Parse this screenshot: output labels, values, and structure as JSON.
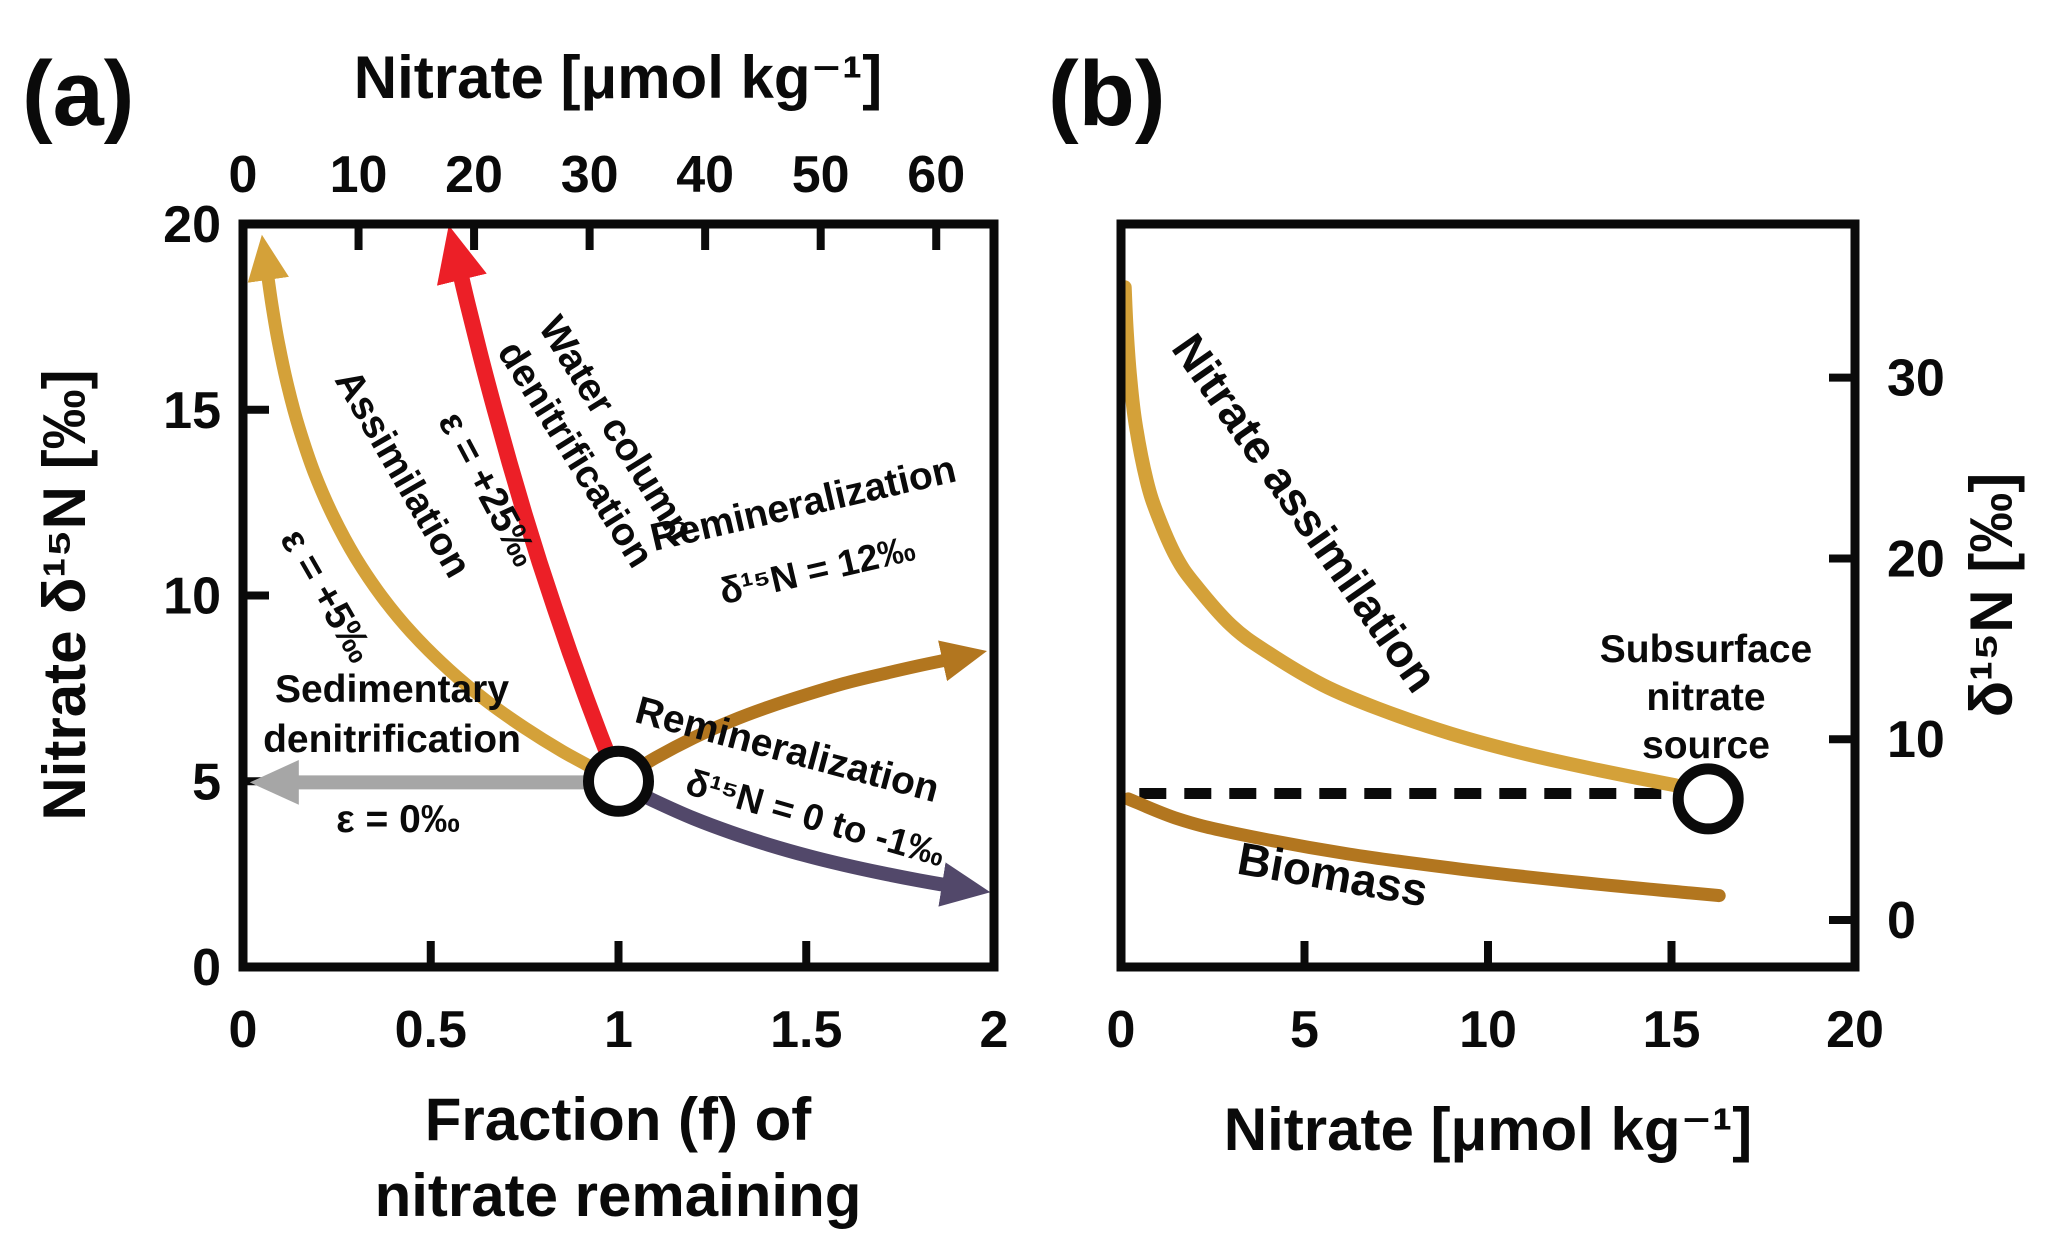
{
  "figure": {
    "background": "#ffffff",
    "text_color": "#0a0a0a"
  },
  "chart_data": [
    {
      "id": "panel-a",
      "type": "line",
      "panel_label": "(a)",
      "xlim": [
        0,
        2
      ],
      "ylim": [
        0,
        20
      ],
      "axes": {
        "top": {
          "label": "Nitrate [μmol kg⁻¹]",
          "ticks": [
            0,
            10,
            20,
            30,
            40,
            50,
            60
          ],
          "range": [
            0,
            65
          ]
        },
        "left": {
          "label": "Nitrate δ¹⁵N [‰]",
          "ticks": [
            0,
            5,
            10,
            15,
            20
          ]
        },
        "bottom": {
          "label_lines": [
            "Fraction (f) of",
            "nitrate remaining"
          ],
          "ticks": [
            0,
            0.5,
            1,
            1.5,
            2
          ]
        }
      },
      "series": [
        {
          "name": "sedimentary-denitrification",
          "color": "#a6a6a6",
          "width": 14,
          "arrow": "end",
          "points": [
            [
              0.93,
              4.97
            ],
            [
              0.13,
              4.97
            ]
          ]
        },
        {
          "name": "assimilation",
          "color": "#d4a139",
          "width": 13,
          "arrow": "end",
          "points": [
            [
              0.95,
              5.26
            ],
            [
              0.85,
              5.81
            ],
            [
              0.75,
              6.44
            ],
            [
              0.65,
              7.15
            ],
            [
              0.55,
              7.99
            ],
            [
              0.45,
              8.99
            ],
            [
              0.37,
              9.97
            ],
            [
              0.3,
              11.02
            ],
            [
              0.24,
              12.14
            ],
            [
              0.19,
              13.3
            ],
            [
              0.15,
              14.49
            ],
            [
              0.12,
              15.6
            ],
            [
              0.095,
              16.77
            ],
            [
              0.078,
              17.76
            ],
            [
              0.065,
              18.67
            ]
          ]
        },
        {
          "name": "water-column-denitrification",
          "color": "#ec1f27",
          "width": 16,
          "arrow": "end",
          "points": [
            [
              0.985,
              5.38
            ],
            [
              0.95,
              6.28
            ],
            [
              0.91,
              7.36
            ],
            [
              0.87,
              8.48
            ],
            [
              0.83,
              9.66
            ],
            [
              0.79,
              10.89
            ],
            [
              0.75,
              12.19
            ],
            [
              0.71,
              13.57
            ],
            [
              0.67,
              15.02
            ],
            [
              0.63,
              16.55
            ],
            [
              0.6,
              17.77
            ],
            [
              0.578,
              18.71
            ]
          ]
        },
        {
          "name": "remineralization-high",
          "color": "#b2761f",
          "width": 13,
          "arrow": "end",
          "points": [
            [
              1.03,
              5.2
            ],
            [
              1.1,
              5.64
            ],
            [
              1.2,
              6.17
            ],
            [
              1.3,
              6.62
            ],
            [
              1.4,
              7.0
            ],
            [
              1.5,
              7.33
            ],
            [
              1.6,
              7.63
            ],
            [
              1.7,
              7.88
            ],
            [
              1.8,
              8.11
            ],
            [
              1.88,
              8.28
            ]
          ]
        },
        {
          "name": "remineralization-low",
          "color": "#52486a",
          "width": 14,
          "arrow": "end",
          "points": [
            [
              1.03,
              4.81
            ],
            [
              1.1,
              4.45
            ],
            [
              1.2,
              4.0
            ],
            [
              1.3,
              3.62
            ],
            [
              1.4,
              3.29
            ],
            [
              1.5,
              3.0
            ],
            [
              1.6,
              2.75
            ],
            [
              1.7,
              2.53
            ],
            [
              1.8,
              2.33
            ],
            [
              1.88,
              2.19
            ]
          ]
        }
      ],
      "open_markers": [
        {
          "x": 1,
          "y": 5,
          "name": "initial-nitrate-marker"
        }
      ],
      "annotations": {
        "sedimentary": {
          "line1": "Sedimentary",
          "line2": "denitrification",
          "epsilon": "ε = 0‰"
        },
        "assimilation": {
          "label": "Assimilation",
          "epsilon": "ε = +5‰"
        },
        "water_column": {
          "line1": "Water column",
          "line2": "denitrification",
          "epsilon": "ε = +25‰"
        },
        "remin_high": {
          "label": "Remineralization",
          "value": "δ¹⁵N = 12‰"
        },
        "remin_low": {
          "label": "Remineralization",
          "value": "δ¹⁵N = 0 to -1‰"
        }
      }
    },
    {
      "id": "panel-b",
      "type": "line",
      "panel_label": "(b)",
      "xlim": [
        0,
        20
      ],
      "ylim": [
        -2.6,
        38.5
      ],
      "axes": {
        "bottom": {
          "label": "Nitrate [μmol kg⁻¹]",
          "ticks": [
            0,
            5,
            10,
            15,
            20
          ]
        },
        "right": {
          "label": "δ¹⁵N [‰]",
          "ticks": [
            0,
            10,
            20,
            30
          ]
        }
      },
      "series": [
        {
          "name": "subsurface-source-line",
          "color": "#0a0a0a",
          "width": 11,
          "dashed": true,
          "points": [
            [
              0.5,
              7.0
            ],
            [
              15.3,
              7.0
            ]
          ]
        },
        {
          "name": "nitrate-assimilation",
          "color": "#d4a139",
          "width": 14,
          "points": [
            [
              0.1,
              35.0
            ],
            [
              0.15,
              32.8
            ],
            [
              0.25,
              30.0
            ],
            [
              0.4,
              27.4
            ],
            [
              0.7,
              24.3
            ],
            [
              1.0,
              22.4
            ],
            [
              1.5,
              20.1
            ],
            [
              2.0,
              18.6
            ],
            [
              3.0,
              16.3
            ],
            [
              4.0,
              14.8
            ],
            [
              5.5,
              13.0
            ],
            [
              7.0,
              11.7
            ],
            [
              9.0,
              10.3
            ],
            [
              11.0,
              9.2
            ],
            [
              13.0,
              8.3
            ],
            [
              15.1,
              7.45
            ]
          ]
        },
        {
          "name": "biomass",
          "color": "#b2761f",
          "width": 13,
          "points": [
            [
              0.2,
              6.7
            ],
            [
              1.55,
              5.6
            ],
            [
              3.1,
              4.8
            ],
            [
              6.2,
              3.65
            ],
            [
              9.3,
              2.8
            ],
            [
              12.4,
              2.1
            ],
            [
              15.5,
              1.5
            ],
            [
              16.3,
              1.35
            ]
          ]
        }
      ],
      "open_markers": [
        {
          "x": 16,
          "y": 6.7,
          "name": "subsurface-nitrate-source-marker"
        }
      ],
      "annotations": {
        "assimilation": "Nitrate assimilation",
        "biomass": "Biomass",
        "subsurface": {
          "line1": "Subsurface",
          "line2": "nitrate",
          "line3": "source"
        }
      }
    }
  ]
}
